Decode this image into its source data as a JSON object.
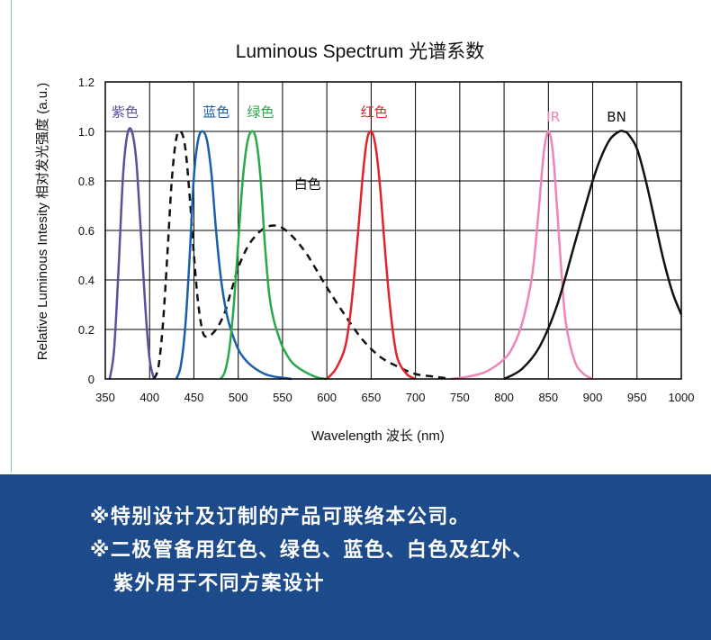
{
  "chart_data": {
    "type": "line",
    "title": "Luminous Spectrum 光谱系数",
    "xlabel": "Wavelength 波长 (nm)",
    "ylabel": "Relative Luminous Intesity 相对发光强度 (a.u.)",
    "xlim": [
      350,
      1000
    ],
    "ylim": [
      0,
      1.2
    ],
    "x_ticks": [
      "350",
      "400",
      "450",
      "500",
      "550",
      "600",
      "650",
      "700",
      "750",
      "800",
      "850",
      "900",
      "950",
      "1000"
    ],
    "y_ticks": [
      "0",
      "0.2",
      "0.4",
      "0.6",
      "0.8",
      "1.0",
      "1.2"
    ],
    "grid": true,
    "series": [
      {
        "name": "紫色",
        "color": "#5b4fa0",
        "style": "solid",
        "x": [
          355,
          360,
          365,
          370,
          375,
          380,
          385,
          390,
          395,
          400,
          405
        ],
        "y": [
          0,
          0.12,
          0.45,
          0.82,
          0.99,
          1.0,
          0.88,
          0.6,
          0.3,
          0.08,
          0
        ]
      },
      {
        "name": "",
        "color": "#111111",
        "style": "dashed",
        "x": [
          405,
          410,
          415,
          420,
          425,
          430,
          435,
          440,
          445,
          450,
          455,
          460,
          465,
          470,
          475,
          480,
          485,
          490,
          495,
          500,
          510,
          520,
          530,
          540,
          550,
          560,
          570,
          580,
          590,
          600,
          620,
          640,
          660,
          680,
          700,
          720,
          740
        ],
        "y": [
          0,
          0.05,
          0.22,
          0.5,
          0.8,
          0.97,
          1.0,
          0.94,
          0.75,
          0.5,
          0.3,
          0.19,
          0.17,
          0.18,
          0.2,
          0.23,
          0.27,
          0.33,
          0.39,
          0.45,
          0.53,
          0.58,
          0.61,
          0.62,
          0.61,
          0.58,
          0.54,
          0.49,
          0.43,
          0.37,
          0.26,
          0.16,
          0.09,
          0.05,
          0.02,
          0.01,
          0
        ]
      },
      {
        "name": "蓝色",
        "color": "#1a5fab",
        "style": "solid",
        "x": [
          430,
          435,
          440,
          445,
          450,
          455,
          460,
          465,
          470,
          475,
          480,
          485,
          490,
          500,
          510,
          520,
          530,
          540,
          550,
          560
        ],
        "y": [
          0,
          0.05,
          0.2,
          0.48,
          0.82,
          0.97,
          1.0,
          0.96,
          0.82,
          0.6,
          0.42,
          0.3,
          0.22,
          0.12,
          0.07,
          0.04,
          0.02,
          0.01,
          0.005,
          0
        ]
      },
      {
        "name": "绿色",
        "color": "#2aa84a",
        "style": "solid",
        "x": [
          480,
          485,
          490,
          495,
          500,
          505,
          510,
          515,
          520,
          525,
          530,
          535,
          540,
          545,
          550,
          560,
          570,
          580,
          590,
          600
        ],
        "y": [
          0,
          0.03,
          0.12,
          0.3,
          0.55,
          0.8,
          0.95,
          1.0,
          0.97,
          0.82,
          0.55,
          0.34,
          0.24,
          0.18,
          0.13,
          0.07,
          0.04,
          0.02,
          0.005,
          0
        ]
      },
      {
        "name": "红色",
        "color": "#e0242c",
        "style": "solid",
        "x": [
          600,
          610,
          620,
          625,
          630,
          635,
          640,
          645,
          650,
          655,
          660,
          665,
          670,
          675,
          680,
          690,
          700
        ],
        "y": [
          0,
          0.04,
          0.12,
          0.22,
          0.38,
          0.58,
          0.8,
          0.96,
          1.0,
          0.94,
          0.78,
          0.55,
          0.34,
          0.18,
          0.08,
          0.02,
          0
        ]
      },
      {
        "name": "IR",
        "color": "#ee85b8",
        "style": "solid",
        "x": [
          740,
          760,
          780,
          800,
          810,
          820,
          830,
          835,
          840,
          845,
          850,
          855,
          860,
          865,
          870,
          880,
          890,
          900
        ],
        "y": [
          0,
          0.01,
          0.03,
          0.08,
          0.13,
          0.22,
          0.38,
          0.52,
          0.72,
          0.92,
          1.0,
          0.92,
          0.68,
          0.42,
          0.22,
          0.07,
          0.02,
          0
        ]
      },
      {
        "name": "BN",
        "color": "#111111",
        "style": "solid",
        "x": [
          800,
          820,
          840,
          860,
          880,
          900,
          910,
          920,
          930,
          935,
          940,
          950,
          960,
          970,
          980,
          990,
          1000
        ],
        "y": [
          0,
          0.04,
          0.13,
          0.3,
          0.55,
          0.8,
          0.9,
          0.97,
          1.0,
          1.0,
          0.99,
          0.93,
          0.8,
          0.64,
          0.48,
          0.35,
          0.26
        ]
      }
    ],
    "annotations": [
      {
        "text": "紫色",
        "x": 357,
        "y": 1.06,
        "color": "#5b4fa0"
      },
      {
        "text": "蓝色",
        "x": 460,
        "y": 1.06,
        "color": "#1a5fab"
      },
      {
        "text": "绿色",
        "x": 510,
        "y": 1.06,
        "color": "#2aa84a"
      },
      {
        "text": "白色",
        "x": 563,
        "y": 0.77,
        "color": "#111111"
      },
      {
        "text": "红色",
        "x": 638,
        "y": 1.06,
        "color": "#e0242c"
      },
      {
        "text": "IR",
        "x": 848,
        "y": 1.04,
        "color": "#ee85b8"
      },
      {
        "text": "BN",
        "x": 916,
        "y": 1.04,
        "color": "#111111"
      }
    ]
  },
  "footer": {
    "line1": "※特别设计及订制的产品可联络本公司。",
    "line2": "※二极管备用红色、绿色、蓝色、白色及红外、",
    "line3": "紫外用于不同方案设计"
  }
}
